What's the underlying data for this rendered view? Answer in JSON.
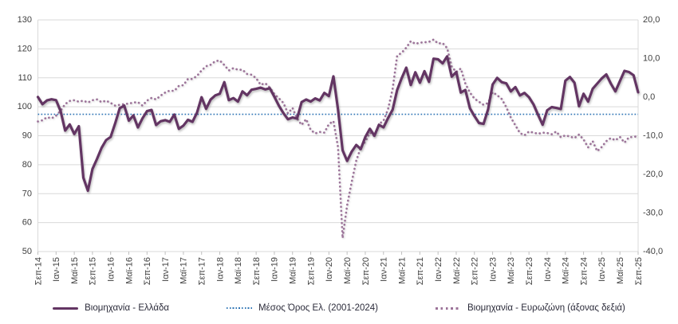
{
  "figure": {
    "background": "#ffffff"
  },
  "colors": {
    "greece_line": "#633563",
    "avg_line": "#2E74B5",
    "eurozone_line": "#9C7399",
    "gridline": "#D9D9D9",
    "axis_text": "#404040",
    "tick_mark": "#BFBFBF"
  },
  "chart_data": {
    "type": "line",
    "title": "",
    "xlabel": "",
    "ylabel_left": "",
    "ylabel_right": "",
    "grid": true,
    "legend_position": "bottom",
    "x_start": "Σεπ-14",
    "x_end": "Σεπ-25",
    "months_per_labeled_tick": 4,
    "x_tick_labels": [
      "Σεπ-14",
      "Ιαν-15",
      "Μαϊ-15",
      "Σεπ-15",
      "Ιαν-16",
      "Μαϊ-16",
      "Σεπ-16",
      "Ιαν-17",
      "Μαϊ-17",
      "Σεπ-17",
      "Ιαν-18",
      "Μαϊ-18",
      "Σεπ-18",
      "Ιαν-19",
      "Μαϊ-19",
      "Σεπ-19",
      "Ιαν-20",
      "Μαϊ-20",
      "Σεπ-20",
      "Ιαν-21",
      "Μαϊ-21",
      "Σεπ-21",
      "Ιαν-22",
      "Μαϊ-22",
      "Σεπ-22",
      "Ιαν-23",
      "Μαϊ-23",
      "Σεπ-23",
      "Ιαν-24",
      "Μαϊ-24",
      "Σεπ-24",
      "Ιαν-25",
      "Μαϊ-25",
      "Σεπ-25"
    ],
    "left_axis": {
      "min": 50,
      "max": 130,
      "ticks": [
        130,
        120,
        110,
        100,
        90,
        80,
        70,
        60,
        50
      ]
    },
    "right_axis": {
      "min": -40,
      "max": 20,
      "tick_values": [
        20,
        10,
        0,
        -10,
        -20,
        -30,
        -40
      ],
      "tick_labels": [
        "20,0",
        "10,0",
        "0,0",
        "-10,0",
        "-20,0",
        "-30,0",
        "-40,0"
      ]
    },
    "series": [
      {
        "name": "Βιομηχανία - Ελλάδα",
        "axis": "left",
        "style": "solid",
        "values": [
          103.4,
          100.9,
          102.2,
          102.6,
          102.3,
          98.5,
          91.8,
          93.9,
          90.6,
          93.3,
          75.5,
          71.0,
          78.5,
          82.0,
          85.8,
          88.5,
          89.6,
          94.3,
          99.5,
          100.4,
          95.2,
          97.0,
          92.9,
          96.0,
          98.5,
          98.9,
          93.7,
          95.0,
          95.4,
          94.8,
          97.3,
          92.4,
          93.5,
          95.5,
          94.8,
          98.0,
          103.3,
          99.3,
          102.5,
          103.9,
          104.5,
          108.5,
          102.3,
          103.0,
          101.8,
          105.3,
          104.0,
          105.9,
          106.2,
          106.6,
          106.0,
          106.4,
          103.5,
          100.4,
          97.8,
          95.7,
          96.3,
          95.9,
          101.6,
          102.5,
          101.8,
          102.9,
          102.2,
          104.8,
          103.7,
          110.5,
          99.0,
          85.0,
          81.3,
          84.5,
          86.8,
          85.4,
          89.6,
          92.4,
          90.0,
          93.8,
          92.9,
          96.1,
          99.0,
          105.8,
          109.9,
          113.5,
          107.5,
          111.9,
          108.3,
          112.3,
          108.6,
          116.6,
          116.4,
          115.0,
          117.4,
          110.4,
          112.0,
          104.9,
          105.8,
          99.5,
          96.8,
          94.4,
          94.1,
          99.1,
          107.7,
          110.0,
          108.5,
          108.1,
          105.3,
          106.8,
          103.9,
          104.8,
          103.3,
          100.8,
          97.2,
          93.8,
          98.8,
          99.9,
          99.6,
          99.2,
          109.0,
          110.3,
          108.3,
          100.2,
          104.5,
          101.8,
          106.2,
          108.0,
          109.8,
          111.2,
          108.0,
          105.3,
          108.9,
          112.4,
          112.0,
          110.9,
          105.0
        ]
      },
      {
        "name": "Μέσος Όρος Ελ. (2001-2024)",
        "axis": "left",
        "style": "dotted-fine",
        "constant": 97.4
      },
      {
        "name": "Βιομηχανία - Ευρωζώνη (άξονας δεξιά)",
        "axis": "right",
        "style": "dotted",
        "values": [
          -6.3,
          -6.0,
          -5.2,
          -5.5,
          -4.8,
          -3.5,
          -1.8,
          -1.0,
          -0.8,
          -1.2,
          -0.9,
          -1.4,
          -0.8,
          -0.6,
          -1.3,
          -0.9,
          -1.5,
          -2.2,
          -2.0,
          -1.8,
          -1.7,
          -1.4,
          -1.3,
          -2.2,
          -0.9,
          -0.2,
          -0.6,
          0.4,
          1.2,
          1.7,
          1.6,
          2.9,
          3.1,
          4.7,
          4.7,
          5.5,
          6.9,
          8.0,
          8.4,
          9.3,
          9.5,
          8.3,
          6.9,
          7.5,
          7.1,
          7.1,
          6.0,
          5.8,
          4.9,
          3.2,
          3.6,
          2.5,
          0.8,
          -0.3,
          -1.5,
          -4.2,
          -2.8,
          -5.5,
          -7.2,
          -5.7,
          -8.5,
          -9.4,
          -9.0,
          -9.2,
          -7.0,
          -6.2,
          -13.0,
          -36.5,
          -28.0,
          -22.0,
          -16.5,
          -13.0,
          -11.5,
          -9.2,
          -10.1,
          -7.0,
          -6.1,
          -3.1,
          2.1,
          10.7,
          11.5,
          12.8,
          14.5,
          13.8,
          14.1,
          14.2,
          14.3,
          14.9,
          13.9,
          14.0,
          12.7,
          7.9,
          6.5,
          7.4,
          3.5,
          1.2,
          -0.4,
          -1.2,
          -2.0,
          -1.5,
          1.3,
          0.5,
          -0.5,
          -2.6,
          -5.3,
          -7.3,
          -9.3,
          -9.9,
          -8.9,
          -9.2,
          -9.5,
          -9.2,
          -9.3,
          -9.6,
          -8.9,
          -10.4,
          -9.9,
          -10.2,
          -10.6,
          -9.7,
          -11.0,
          -13.0,
          -11.4,
          -14.0,
          -12.9,
          -11.4,
          -10.6,
          -11.2,
          -10.3,
          -11.8,
          -10.4,
          -10.3,
          -10.1
        ]
      }
    ]
  }
}
